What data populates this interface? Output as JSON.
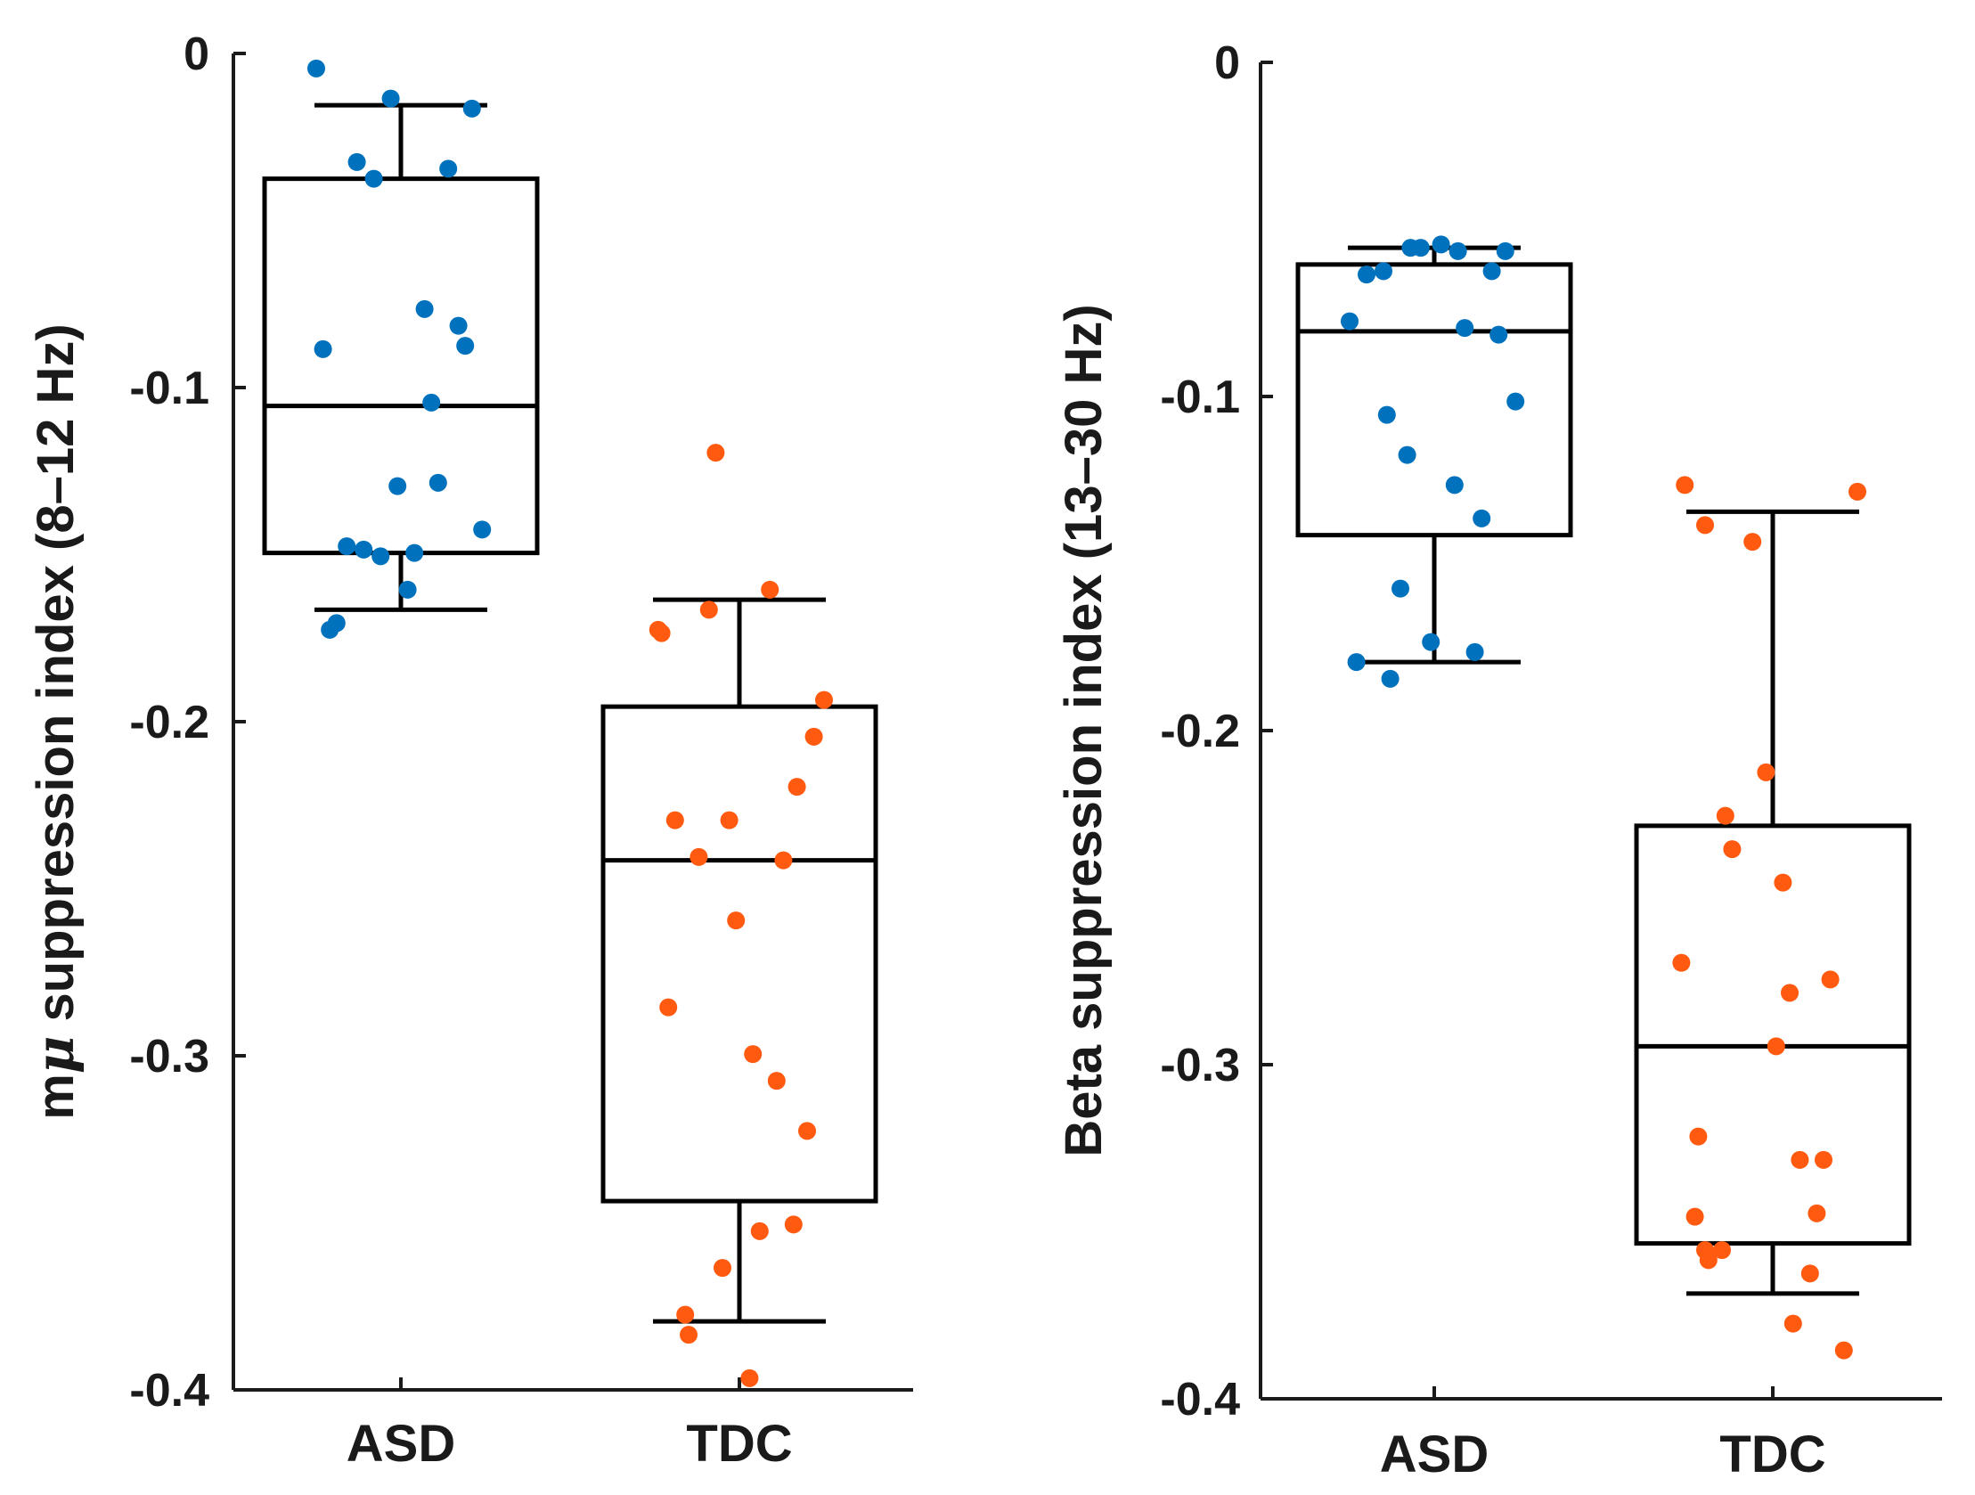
{
  "chart_data": [
    {
      "type": "box",
      "ylabel": "mμ suppression index (8–12 Hz)",
      "ylabel_parts": {
        "prefix": "m",
        "symbol": "μ",
        "suffix": " suppression index (8–12 Hz)"
      },
      "ylim": [
        -0.4,
        0
      ],
      "yticks": [
        0,
        -0.1,
        -0.2,
        -0.3,
        -0.4
      ],
      "ytick_labels": [
        "0",
        "-0.1",
        "-0.2",
        "-0.3",
        "-0.4"
      ],
      "categories": [
        "ASD",
        "TDC"
      ],
      "colors": {
        "ASD": "#0072BD",
        "TDC": "#FF5A0F"
      },
      "boxes": [
        {
          "name": "ASD",
          "whisker_high": -0.0155,
          "q3": -0.0375,
          "median": -0.1055,
          "q1": -0.1495,
          "whisker_low": -0.1665
        },
        {
          "name": "TDC",
          "whisker_high": -0.1635,
          "q3": -0.1955,
          "median": -0.2415,
          "q1": -0.3435,
          "whisker_low": -0.3795
        }
      ],
      "points": [
        {
          "group": "ASD",
          "points": [
            {
              "x": -0.25,
              "y": -0.0045
            },
            {
              "x": -0.03,
              "y": -0.0135
            },
            {
              "x": 0.21,
              "y": -0.0165
            },
            {
              "x": -0.13,
              "y": -0.0325
            },
            {
              "x": -0.08,
              "y": -0.0375
            },
            {
              "x": 0.14,
              "y": -0.0345
            },
            {
              "x": 0.07,
              "y": -0.0765
            },
            {
              "x": 0.17,
              "y": -0.0815
            },
            {
              "x": -0.23,
              "y": -0.0885
            },
            {
              "x": 0.19,
              "y": -0.0875
            },
            {
              "x": 0.09,
              "y": -0.1045
            },
            {
              "x": -0.01,
              "y": -0.1295
            },
            {
              "x": 0.11,
              "y": -0.1285
            },
            {
              "x": 0.24,
              "y": -0.1425
            },
            {
              "x": -0.16,
              "y": -0.1475
            },
            {
              "x": -0.11,
              "y": -0.1485
            },
            {
              "x": -0.06,
              "y": -0.1505
            },
            {
              "x": 0.04,
              "y": -0.1495
            },
            {
              "x": 0.02,
              "y": -0.1605
            },
            {
              "x": -0.19,
              "y": -0.1705
            },
            {
              "x": -0.21,
              "y": -0.1725
            }
          ]
        },
        {
          "group": "TDC",
          "points": [
            {
              "x": -0.07,
              "y": -0.1195
            },
            {
              "x": 0.09,
              "y": -0.1605
            },
            {
              "x": -0.09,
              "y": -0.1665
            },
            {
              "x": -0.24,
              "y": -0.1725
            },
            {
              "x": -0.23,
              "y": -0.1735
            },
            {
              "x": 0.25,
              "y": -0.1935
            },
            {
              "x": 0.22,
              "y": -0.2045
            },
            {
              "x": 0.17,
              "y": -0.2195
            },
            {
              "x": -0.19,
              "y": -0.2295
            },
            {
              "x": -0.03,
              "y": -0.2295
            },
            {
              "x": -0.12,
              "y": -0.2405
            },
            {
              "x": 0.13,
              "y": -0.2415
            },
            {
              "x": -0.01,
              "y": -0.2595
            },
            {
              "x": -0.21,
              "y": -0.2855
            },
            {
              "x": 0.04,
              "y": -0.2995
            },
            {
              "x": 0.11,
              "y": -0.3075
            },
            {
              "x": 0.2,
              "y": -0.3225
            },
            {
              "x": 0.06,
              "y": -0.3525
            },
            {
              "x": 0.16,
              "y": -0.3505
            },
            {
              "x": -0.05,
              "y": -0.3635
            },
            {
              "x": -0.16,
              "y": -0.3775
            },
            {
              "x": -0.15,
              "y": -0.3835
            },
            {
              "x": 0.03,
              "y": -0.3965
            }
          ]
        }
      ]
    },
    {
      "type": "box",
      "ylabel": "Beta suppression index (13–30 Hz)",
      "ylim": [
        -0.4,
        0
      ],
      "yticks": [
        0,
        -0.1,
        -0.2,
        -0.3,
        -0.4
      ],
      "ytick_labels": [
        "0",
        "-0.1",
        "-0.2",
        "-0.3",
        "-0.4"
      ],
      "categories": [
        "ASD",
        "TDC"
      ],
      "colors": {
        "ASD": "#0072BD",
        "TDC": "#FF5A0F"
      },
      "boxes": [
        {
          "name": "ASD",
          "whisker_high": -0.0555,
          "q3": -0.0605,
          "median": -0.0805,
          "q1": -0.1415,
          "whisker_low": -0.1795
        },
        {
          "name": "TDC",
          "whisker_high": -0.1345,
          "q3": -0.2285,
          "median": -0.2945,
          "q1": -0.3535,
          "whisker_low": -0.3685
        }
      ],
      "points": [
        {
          "group": "ASD",
          "points": [
            {
              "x": 0.02,
              "y": -0.0545
            },
            {
              "x": -0.07,
              "y": -0.0555
            },
            {
              "x": -0.04,
              "y": -0.0555
            },
            {
              "x": 0.07,
              "y": -0.0565
            },
            {
              "x": 0.21,
              "y": -0.0565
            },
            {
              "x": -0.2,
              "y": -0.0635
            },
            {
              "x": -0.15,
              "y": -0.0625
            },
            {
              "x": 0.17,
              "y": -0.0625
            },
            {
              "x": -0.25,
              "y": -0.0775
            },
            {
              "x": 0.09,
              "y": -0.0795
            },
            {
              "x": 0.19,
              "y": -0.0815
            },
            {
              "x": 0.24,
              "y": -0.1015
            },
            {
              "x": -0.14,
              "y": -0.1055
            },
            {
              "x": -0.08,
              "y": -0.1175
            },
            {
              "x": 0.06,
              "y": -0.1265
            },
            {
              "x": 0.14,
              "y": -0.1365
            },
            {
              "x": -0.1,
              "y": -0.1575
            },
            {
              "x": -0.01,
              "y": -0.1735
            },
            {
              "x": 0.12,
              "y": -0.1765
            },
            {
              "x": -0.23,
              "y": -0.1795
            },
            {
              "x": -0.13,
              "y": -0.1845
            }
          ]
        },
        {
          "group": "TDC",
          "points": [
            {
              "x": -0.26,
              "y": -0.1265
            },
            {
              "x": 0.25,
              "y": -0.1285
            },
            {
              "x": -0.2,
              "y": -0.1385
            },
            {
              "x": -0.06,
              "y": -0.1435
            },
            {
              "x": -0.02,
              "y": -0.2125
            },
            {
              "x": -0.14,
              "y": -0.2255
            },
            {
              "x": -0.12,
              "y": -0.2355
            },
            {
              "x": 0.03,
              "y": -0.2455
            },
            {
              "x": -0.27,
              "y": -0.2695
            },
            {
              "x": 0.17,
              "y": -0.2745
            },
            {
              "x": 0.05,
              "y": -0.2785
            },
            {
              "x": 0.01,
              "y": -0.2945
            },
            {
              "x": -0.22,
              "y": -0.3215
            },
            {
              "x": 0.08,
              "y": -0.3285
            },
            {
              "x": 0.15,
              "y": -0.3285
            },
            {
              "x": -0.23,
              "y": -0.3455
            },
            {
              "x": 0.13,
              "y": -0.3445
            },
            {
              "x": -0.2,
              "y": -0.3555
            },
            {
              "x": -0.15,
              "y": -0.3555
            },
            {
              "x": -0.19,
              "y": -0.3585
            },
            {
              "x": 0.11,
              "y": -0.3625
            },
            {
              "x": 0.06,
              "y": -0.3775
            },
            {
              "x": 0.21,
              "y": -0.3855
            }
          ]
        }
      ]
    }
  ]
}
